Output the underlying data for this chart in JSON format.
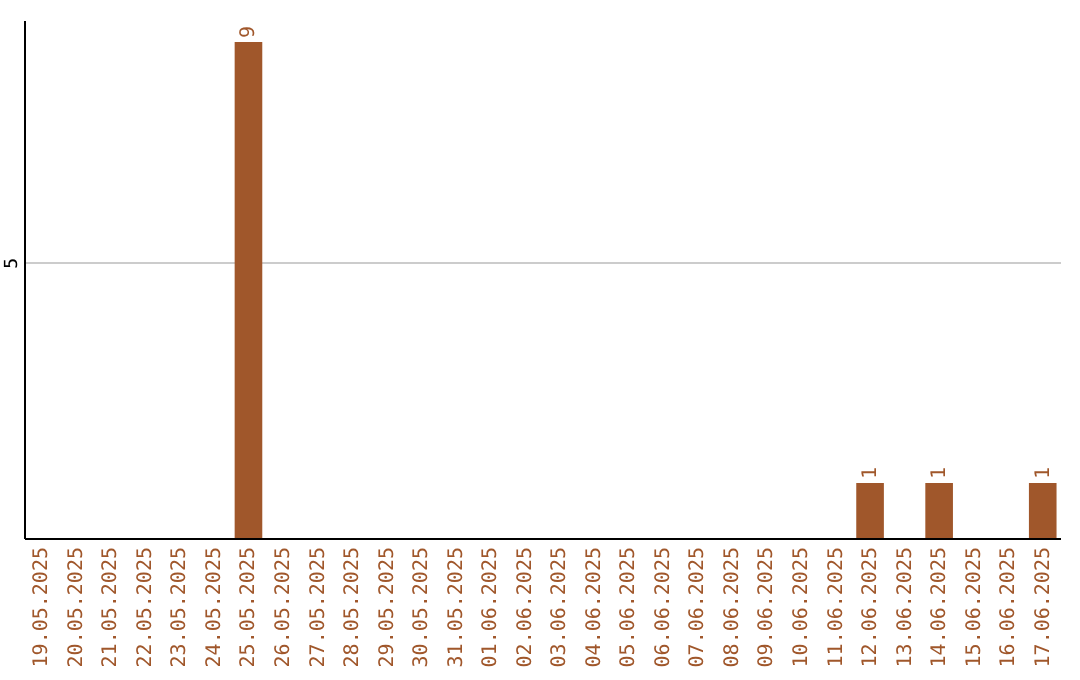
{
  "chart_data": {
    "type": "bar",
    "categories": [
      "19.05.2025",
      "20.05.2025",
      "21.05.2025",
      "22.05.2025",
      "23.05.2025",
      "24.05.2025",
      "25.05.2025",
      "26.05.2025",
      "27.05.2025",
      "28.05.2025",
      "29.05.2025",
      "30.05.2025",
      "31.05.2025",
      "01.06.2025",
      "02.06.2025",
      "03.06.2025",
      "04.06.2025",
      "05.06.2025",
      "06.06.2025",
      "07.06.2025",
      "08.06.2025",
      "09.06.2025",
      "10.06.2025",
      "11.06.2025",
      "12.06.2025",
      "13.06.2025",
      "14.06.2025",
      "15.06.2025",
      "16.06.2025",
      "17.06.2025"
    ],
    "values": [
      0,
      0,
      0,
      0,
      0,
      0,
      9,
      0,
      0,
      0,
      0,
      0,
      0,
      0,
      0,
      0,
      0,
      0,
      0,
      0,
      0,
      0,
      0,
      0,
      1,
      0,
      1,
      0,
      0,
      1
    ],
    "value_labels": [
      null,
      null,
      null,
      null,
      null,
      null,
      "9",
      null,
      null,
      null,
      null,
      null,
      null,
      null,
      null,
      null,
      null,
      null,
      null,
      null,
      null,
      null,
      null,
      null,
      "1",
      null,
      "1",
      null,
      null,
      "1"
    ],
    "color": "#a0572b",
    "ylim": [
      0,
      9.4
    ],
    "yticks": [
      {
        "value": 0,
        "label": null
      },
      5
    ],
    "grid": "y"
  }
}
